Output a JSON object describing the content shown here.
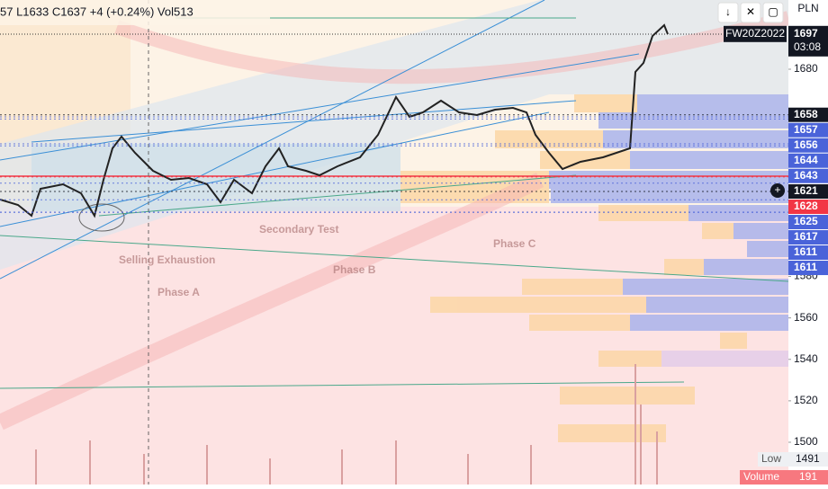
{
  "header": {
    "legend": "57 L1633 C1637 +4 (+0.24%) Vol513"
  },
  "toolbar": {
    "currency": "PLN"
  },
  "annotations": [
    "Phase A",
    "Phase B",
    "Phase C",
    "Secondary Test",
    "Selling Exhaustion"
  ],
  "price_axis": {
    "ticks": [
      1680,
      1580,
      1560,
      1540,
      1520,
      1500
    ],
    "last": {
      "value": 1697,
      "countdown": "03:08",
      "symbol": "FW20Z2022"
    },
    "markers": [
      {
        "value": 1658,
        "color": "#131722"
      },
      {
        "value": 1657,
        "color": "#4a63d9"
      },
      {
        "value": 1656,
        "color": "#4a63d9"
      },
      {
        "value": 1644,
        "color": "#4a63d9"
      },
      {
        "value": 1643,
        "color": "#4a63d9"
      },
      {
        "value": 1621,
        "color": "#131722"
      },
      {
        "value": 1628,
        "color": "#f23645"
      },
      {
        "value": 1625,
        "color": "#4a63d9"
      },
      {
        "value": 1617,
        "color": "#4a63d9"
      },
      {
        "value": 1611,
        "color": "#4a63d9"
      },
      {
        "value": 1611,
        "color": "#4a63d9"
      }
    ],
    "low": {
      "label": "Low",
      "value": 1491
    },
    "volume": {
      "label": "Volume",
      "value": 191
    }
  }
}
